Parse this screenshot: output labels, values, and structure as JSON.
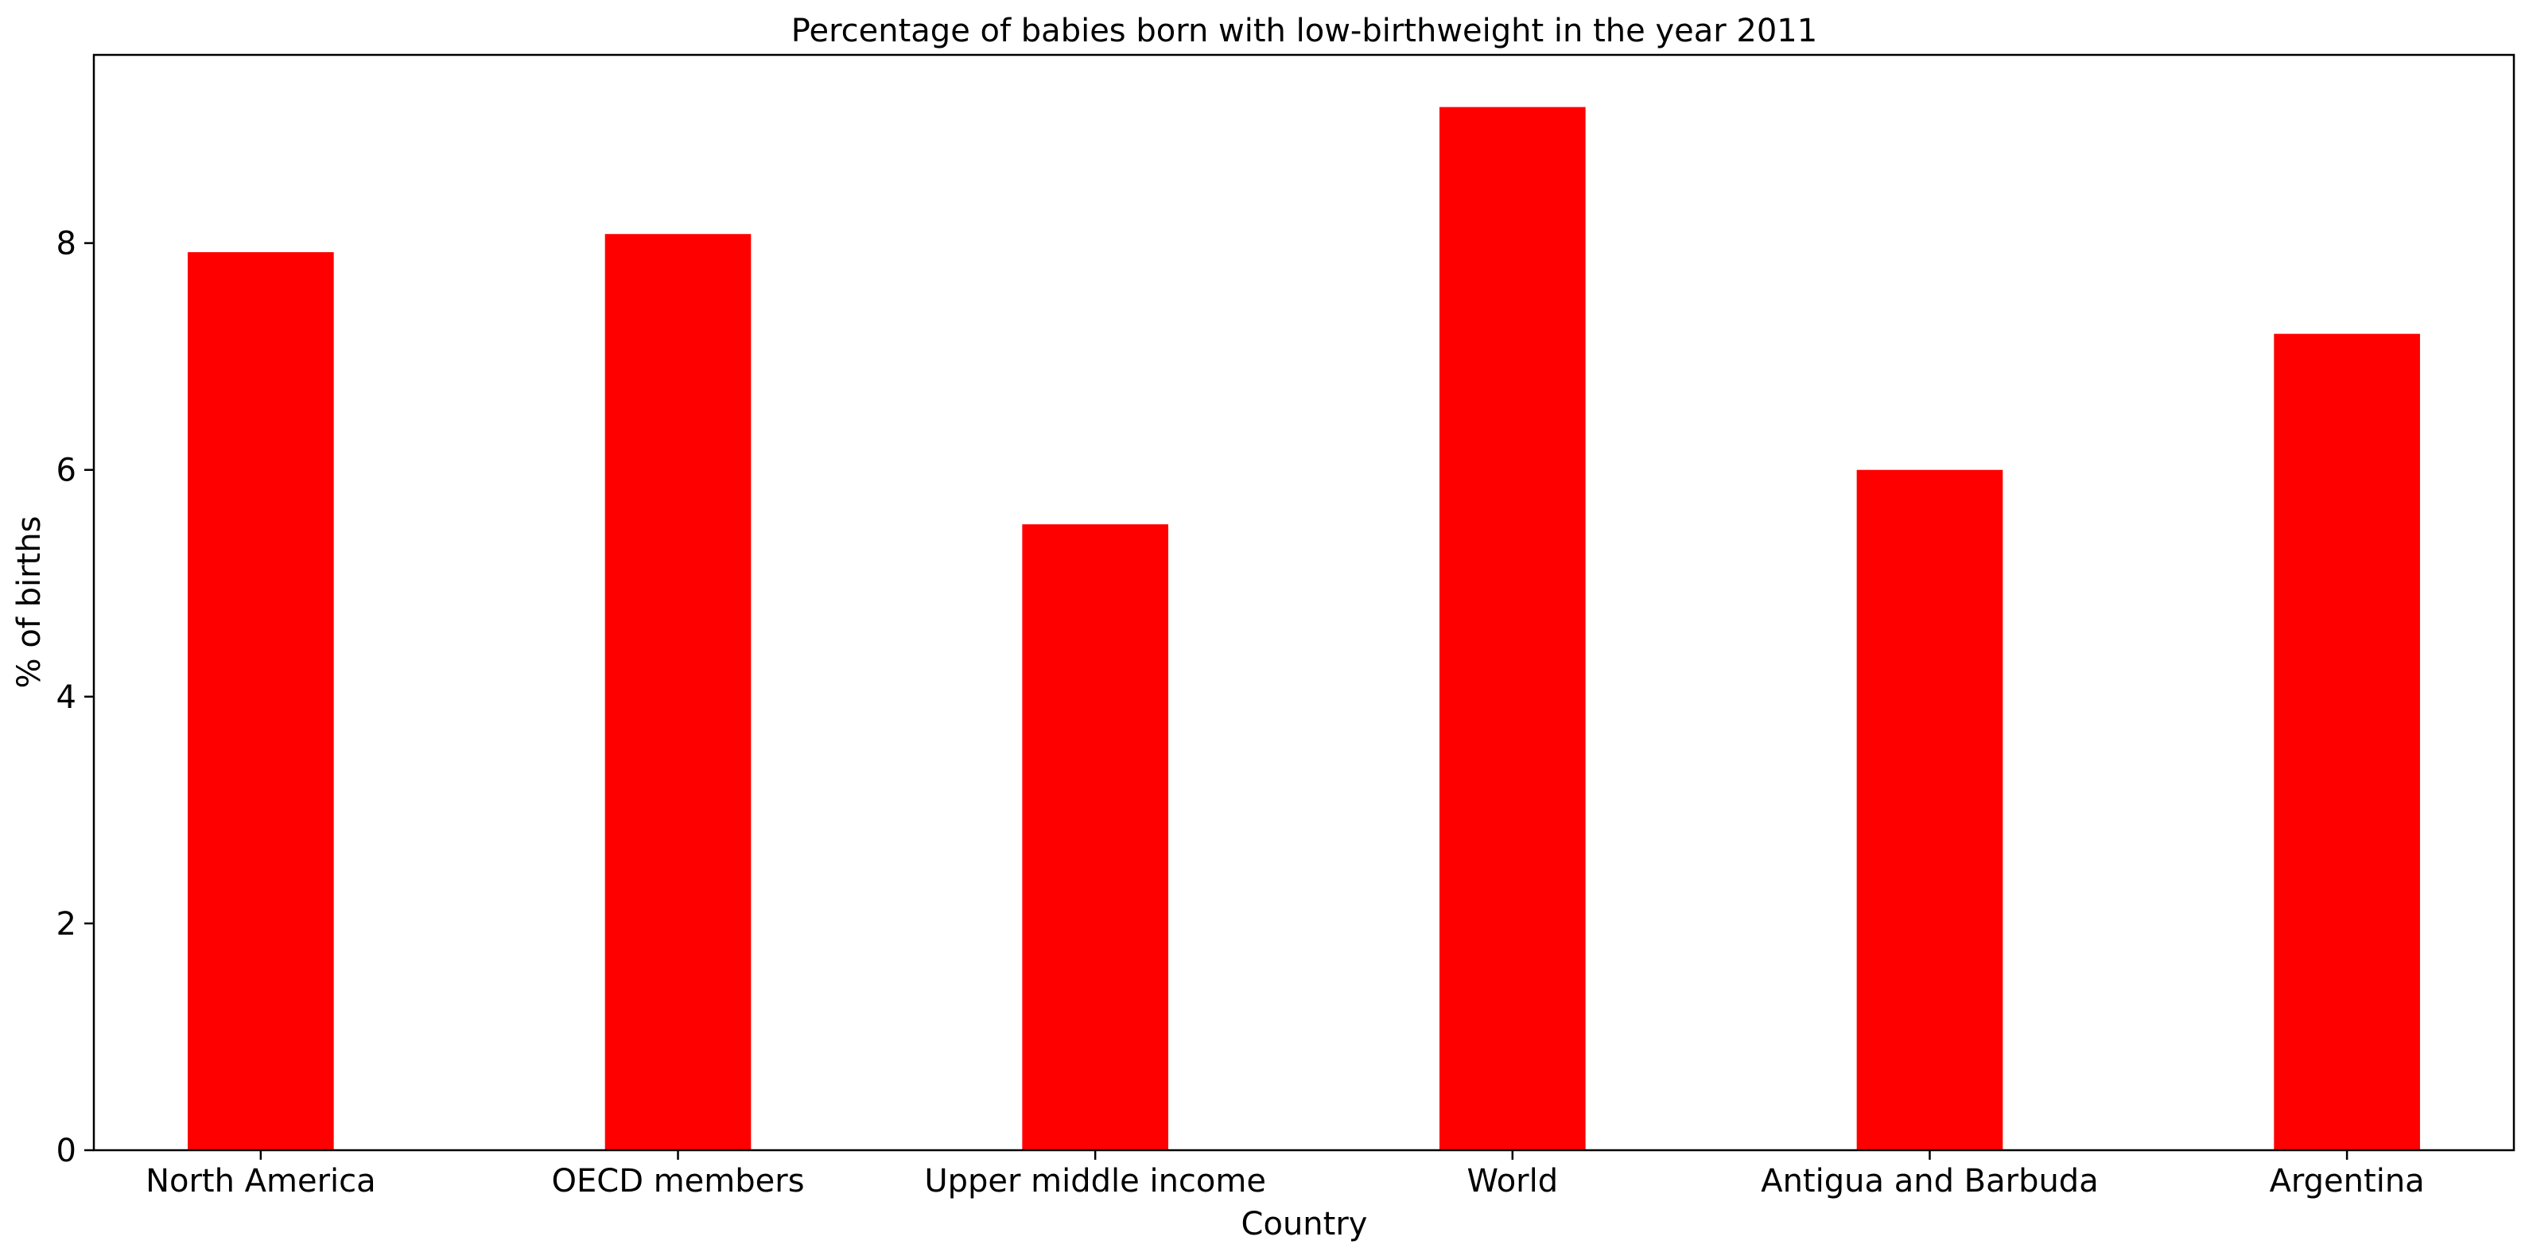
{
  "chart_data": {
    "type": "bar",
    "title": "Percentage of babies born with low-birthweight in the year 2011",
    "xlabel": "Country",
    "ylabel": "% of births",
    "categories": [
      "North America",
      "OECD members",
      "Upper middle income",
      "World",
      "Antigua and Barbuda",
      "Argentina"
    ],
    "values": [
      7.92,
      8.08,
      5.52,
      9.2,
      6.0,
      7.2
    ],
    "ylim": [
      0,
      9.66
    ],
    "yticks": [
      0,
      2,
      4,
      6,
      8
    ],
    "ytick_labels": [
      "0",
      "2",
      "4",
      "6",
      "8"
    ],
    "bar_color": "#ff0000",
    "grid": false,
    "legend": "none"
  }
}
